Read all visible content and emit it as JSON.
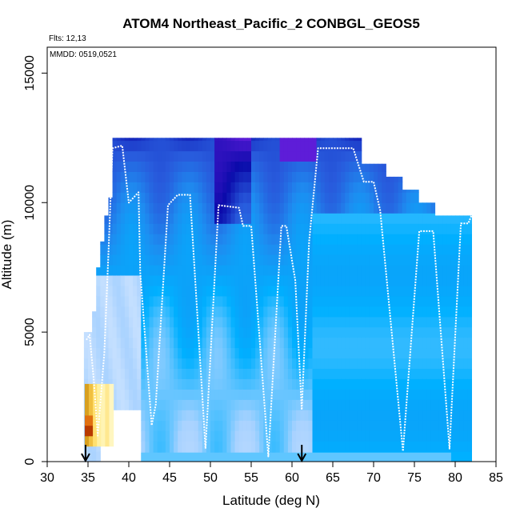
{
  "chart_data": {
    "type": "heatmap",
    "title": "ATOM4 Northeast_Pacific_2 CONBGL_GEOS5",
    "annotations": {
      "flights": "Flts: 12,13",
      "dates": "MMDD: 0519,0521"
    },
    "xlabel": "Latitude (deg N)",
    "ylabel": "Altitude (m)",
    "xlim": [
      30,
      85
    ],
    "ylim": [
      0,
      16000
    ],
    "x_ticks": [
      "30",
      "35",
      "40",
      "45",
      "50",
      "55",
      "60",
      "65",
      "70",
      "75",
      "80",
      "85"
    ],
    "y_ticks": [
      "0",
      "5000",
      "10000",
      "15000"
    ],
    "grid": false,
    "colors": {
      "background_light": "#bcd9ff",
      "mid": "#2aa7f0",
      "dark": "#1a1ab0",
      "darkest": "#0b0086",
      "violet": "#6a1be0",
      "low": "#fff8b0",
      "hot": "#b83a00",
      "track": "#ffffff"
    },
    "column_tops": [
      [
        34.5,
        5000
      ],
      [
        35.5,
        5800
      ],
      [
        36,
        7500
      ],
      [
        36.5,
        8500
      ],
      [
        37,
        9500
      ],
      [
        37.5,
        10200
      ],
      [
        38.2,
        12500
      ],
      [
        68.5,
        12500
      ],
      [
        71.5,
        11500
      ],
      [
        73.5,
        11000
      ],
      [
        75.5,
        10500
      ],
      [
        77.5,
        10000
      ],
      [
        79.8,
        9500
      ],
      [
        82,
        9500
      ]
    ],
    "flight_track": [
      [
        34.8,
        4700
      ],
      [
        35.2,
        4900
      ],
      [
        35.7,
        3200
      ],
      [
        36.2,
        1000
      ],
      [
        37,
        4200
      ],
      [
        37.5,
        8000
      ],
      [
        38,
        12100
      ],
      [
        39.2,
        12200
      ],
      [
        40,
        10000
      ],
      [
        41.2,
        10400
      ],
      [
        41.4,
        7300
      ],
      [
        42.8,
        1400
      ],
      [
        43.3,
        2200
      ],
      [
        44.8,
        9900
      ],
      [
        46,
        10300
      ],
      [
        47.5,
        10300
      ],
      [
        49.4,
        500
      ],
      [
        51,
        9900
      ],
      [
        53.5,
        9800
      ],
      [
        54,
        9100
      ],
      [
        55,
        9100
      ],
      [
        57.1,
        200
      ],
      [
        58.7,
        9100
      ],
      [
        59.3,
        9100
      ],
      [
        60.4,
        7000
      ],
      [
        61.2,
        2000
      ],
      [
        62.1,
        8500
      ],
      [
        63.2,
        12100
      ],
      [
        67.5,
        12100
      ],
      [
        68.8,
        10800
      ],
      [
        70,
        10800
      ],
      [
        70.8,
        9700
      ],
      [
        73.6,
        400
      ],
      [
        75.6,
        8900
      ],
      [
        77.3,
        8900
      ],
      [
        79.3,
        500
      ],
      [
        80.7,
        9200
      ],
      [
        81.6,
        9200
      ],
      [
        82,
        9500
      ]
    ],
    "arrows_at_latitude": [
      34.7,
      61.2
    ]
  }
}
